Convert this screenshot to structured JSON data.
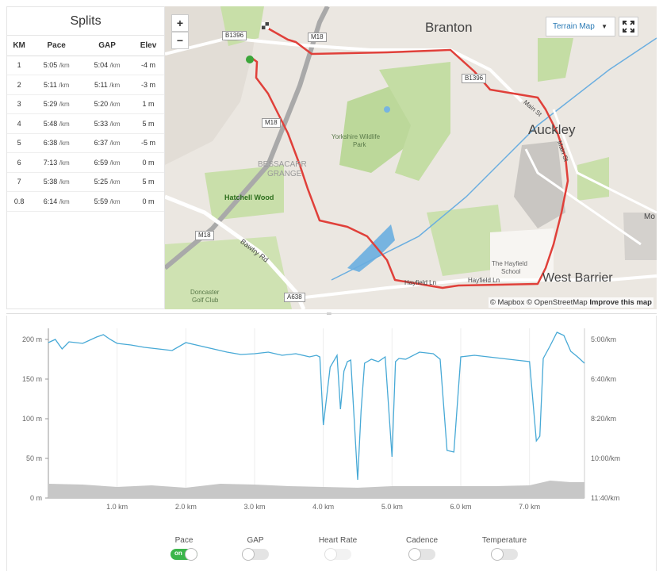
{
  "splits": {
    "title": "Splits",
    "columns": [
      "KM",
      "Pace",
      "GAP",
      "Elev"
    ],
    "rows": [
      {
        "km": "1",
        "pace": "5:05",
        "gap": "5:04",
        "elev": "-4 m"
      },
      {
        "km": "2",
        "pace": "5:11",
        "gap": "5:11",
        "elev": "-3 m"
      },
      {
        "km": "3",
        "pace": "5:29",
        "gap": "5:20",
        "elev": "1 m"
      },
      {
        "km": "4",
        "pace": "5:48",
        "gap": "5:33",
        "elev": "5 m"
      },
      {
        "km": "5",
        "pace": "6:38",
        "gap": "6:37",
        "elev": "-5 m"
      },
      {
        "km": "6",
        "pace": "7:13",
        "gap": "6:59",
        "elev": "0 m"
      },
      {
        "km": "7",
        "pace": "5:38",
        "gap": "5:25",
        "elev": "5 m"
      },
      {
        "km": "0.8",
        "pace": "6:14",
        "gap": "5:59",
        "elev": "0 m"
      }
    ],
    "unit": "/km"
  },
  "map": {
    "zoom_in": "+",
    "zoom_out": "−",
    "style_button": "Terrain Map",
    "attribution_prefix": "© Mapbox © OpenStreetMap",
    "attribution_link": "Improve this map",
    "places": {
      "branton": "Branton",
      "auckley": "Auckley",
      "west_barrier": "West Barrier",
      "bessacarr_line1": "BESSACARR",
      "bessacarr_line2": "GRANGE",
      "hatchell": "Hatchell Wood",
      "wildlife_line1": "Yorkshire Wildlife",
      "wildlife_line2": "Park",
      "hayfield_line1": "The Hayfield",
      "hayfield_line2": "School",
      "golf_line1": "Doncaster",
      "golf_line2": "Golf Club",
      "bawtry": "Bawtry Rd",
      "main_st_1": "Main St",
      "main_st_2": "Main St",
      "hayfield_ln_1": "Hayfield Ln",
      "hayfield_ln_2": "Hayfield Ln",
      "mo": "Mo"
    },
    "roads": {
      "b1396_a": "B1396",
      "b1396_b": "B1396",
      "m18_a": "M18",
      "m18_b": "M18",
      "m18_c": "M18",
      "a638": "A638"
    },
    "route_color": "#e0403a"
  },
  "chart_data": {
    "type": "line",
    "x_label_unit": "km",
    "xlim": [
      0,
      7.8
    ],
    "x_ticks": [
      "1.0 km",
      "2.0 km",
      "3.0 km",
      "4.0 km",
      "5.0 km",
      "6.0 km",
      "7.0 km"
    ],
    "x_tick_values": [
      1,
      2,
      3,
      4,
      5,
      6,
      7
    ],
    "y_left_ticks": [
      "200 m",
      "150 m",
      "100 m",
      "50 m",
      "0 m"
    ],
    "y_left_values": [
      200,
      150,
      100,
      50,
      0
    ],
    "ylim_left": [
      0,
      210
    ],
    "y_right_ticks": [
      "5:00/km",
      "6:40/km",
      "8:20/km",
      "10:00/km",
      "11:40/km"
    ],
    "series": [
      {
        "name": "Pace",
        "color": "#47a9d6",
        "x": [
          0,
          0.1,
          0.2,
          0.3,
          0.5,
          0.7,
          0.8,
          0.9,
          1.0,
          1.2,
          1.4,
          1.6,
          1.8,
          2.0,
          2.2,
          2.4,
          2.6,
          2.8,
          3.0,
          3.2,
          3.4,
          3.6,
          3.8,
          3.9,
          3.95,
          4.0,
          4.1,
          4.2,
          4.25,
          4.3,
          4.35,
          4.4,
          4.5,
          4.55,
          4.6,
          4.7,
          4.8,
          4.9,
          5.0,
          5.05,
          5.1,
          5.2,
          5.4,
          5.6,
          5.7,
          5.8,
          5.9,
          6.0,
          6.2,
          6.4,
          6.6,
          6.8,
          7.0,
          7.1,
          7.15,
          7.2,
          7.3,
          7.4,
          7.5,
          7.6,
          7.7,
          7.8
        ],
        "y": [
          196,
          200,
          188,
          197,
          195,
          203,
          206,
          200,
          195,
          193,
          190,
          188,
          186,
          196,
          192,
          188,
          184,
          181,
          182,
          184,
          180,
          182,
          178,
          180,
          178,
          92,
          165,
          180,
          112,
          160,
          172,
          174,
          23,
          110,
          170,
          175,
          172,
          178,
          52,
          172,
          176,
          175,
          184,
          182,
          175,
          60,
          58,
          178,
          180,
          178,
          176,
          174,
          172,
          72,
          78,
          176,
          192,
          209,
          205,
          185,
          178,
          170
        ]
      },
      {
        "name": "Elevation",
        "color": "#c7c7c7",
        "x": [
          0,
          0.5,
          1.0,
          1.5,
          2.0,
          2.5,
          3.0,
          3.5,
          4.0,
          4.5,
          5.0,
          5.5,
          6.0,
          6.5,
          7.0,
          7.3,
          7.6,
          7.8
        ],
        "y": [
          18,
          17,
          14,
          16,
          13,
          18,
          17,
          15,
          14,
          13,
          15,
          15,
          15,
          15,
          16,
          22,
          20,
          20
        ]
      }
    ]
  },
  "toggles": [
    {
      "label": "Pace",
      "state": "on",
      "on_text": "on"
    },
    {
      "label": "GAP",
      "state": "off"
    },
    {
      "label": "Heart Rate",
      "state": "disabled"
    },
    {
      "label": "Cadence",
      "state": "off"
    },
    {
      "label": "Temperature",
      "state": "off"
    }
  ]
}
